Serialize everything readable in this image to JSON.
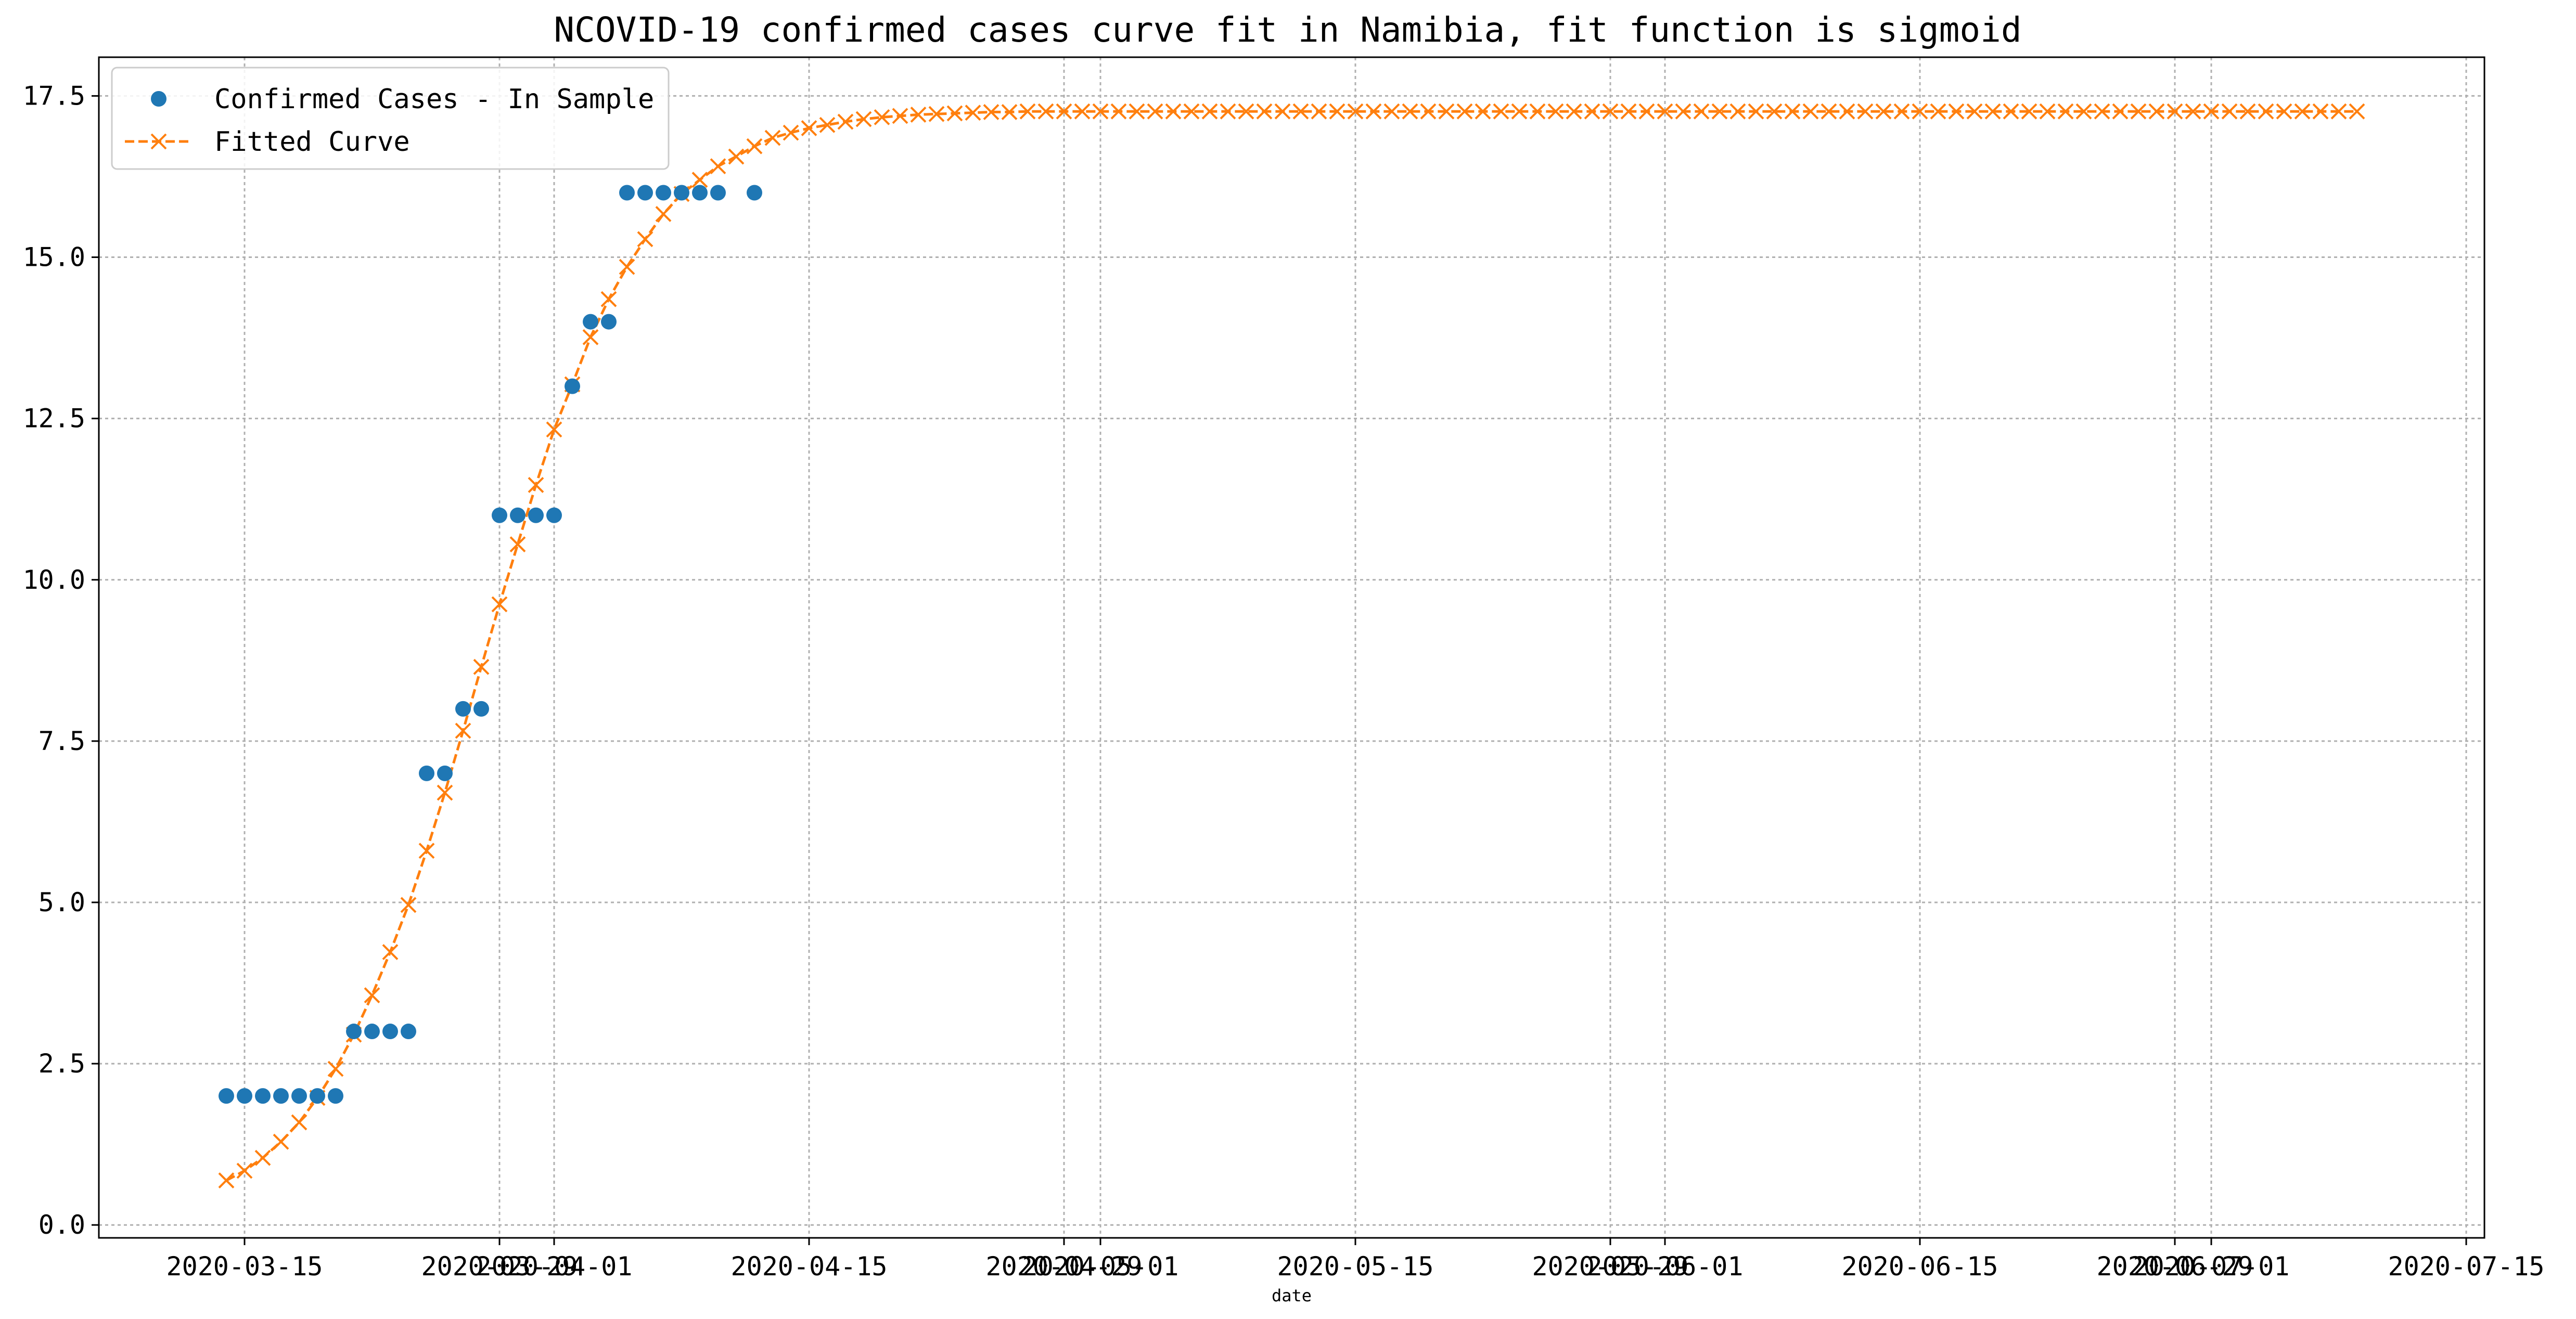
{
  "chart_data": {
    "type": "line",
    "title": "NCOVID-19 confirmed cases curve fit in Namibia, fit function is sigmoid",
    "xlabel": "date",
    "ylabel": "",
    "x_type": "date",
    "xlim": [
      "2020-03-07",
      "2020-07-16"
    ],
    "ylim": [
      -0.2,
      18.1
    ],
    "x_ticks": [
      "2020-03-15",
      "2020-04-01",
      "2020-04-15",
      "2020-05-01",
      "2020-05-15",
      "2020-06-01",
      "2020-06-15",
      "2020-07-01",
      "2020-07-15"
    ],
    "x_ticks_overlapping": [
      "2020-03-29",
      "2020-04-29",
      "2020-05-29",
      "2020-06-29"
    ],
    "y_ticks": [
      0.0,
      2.5,
      5.0,
      7.5,
      10.0,
      12.5,
      15.0,
      17.5
    ],
    "y_tick_labels": [
      "0.0",
      "2.5",
      "5.0",
      "7.5",
      "10.0",
      "12.5",
      "15.0",
      "17.5"
    ],
    "grid": true,
    "legend_position": "top-left",
    "series": [
      {
        "name": "Confirmed Cases - In Sample",
        "style": "markers",
        "marker": "circle",
        "color": "#1f77b4",
        "x": [
          "2020-03-14",
          "2020-03-15",
          "2020-03-16",
          "2020-03-17",
          "2020-03-18",
          "2020-03-19",
          "2020-03-20",
          "2020-03-21",
          "2020-03-22",
          "2020-03-23",
          "2020-03-24",
          "2020-03-25",
          "2020-03-26",
          "2020-03-27",
          "2020-03-28",
          "2020-03-29",
          "2020-03-30",
          "2020-03-31",
          "2020-04-01",
          "2020-04-02",
          "2020-04-03",
          "2020-04-04",
          "2020-04-05",
          "2020-04-06",
          "2020-04-07",
          "2020-04-08",
          "2020-04-09",
          "2020-04-10",
          "2020-04-12"
        ],
        "y": [
          2,
          2,
          2,
          2,
          2,
          2,
          2,
          3,
          3,
          3,
          3,
          7,
          7,
          8,
          8,
          11,
          11,
          11,
          11,
          13,
          14,
          14,
          16,
          16,
          16,
          16,
          16,
          16,
          16
        ]
      },
      {
        "name": "Fitted Curve",
        "style": "dashed-line-x-markers",
        "marker": "x",
        "color": "#ff7f0e",
        "x_start": "2020-03-14",
        "x_end": "2020-07-10",
        "step_days": 1,
        "y": [
          0.69,
          0.84,
          1.04,
          1.29,
          1.59,
          1.97,
          2.42,
          2.95,
          3.56,
          4.23,
          4.96,
          5.8,
          6.7,
          7.66,
          8.65,
          9.62,
          10.55,
          11.47,
          12.33,
          13.03,
          13.76,
          14.35,
          14.85,
          15.28,
          15.67,
          15.98,
          16.2,
          16.41,
          16.56,
          16.72,
          16.85,
          16.93,
          17.0,
          17.05,
          17.1,
          17.14,
          17.17,
          17.19,
          17.21,
          17.22,
          17.23,
          17.24,
          17.25,
          17.25,
          17.26,
          17.26,
          17.26,
          17.26,
          17.26,
          17.26,
          17.26,
          17.26,
          17.26,
          17.26,
          17.26,
          17.26,
          17.26,
          17.26,
          17.26,
          17.26,
          17.26,
          17.26,
          17.26,
          17.26,
          17.26,
          17.26,
          17.26,
          17.26,
          17.26,
          17.26,
          17.26,
          17.26,
          17.26,
          17.26,
          17.26,
          17.26,
          17.26,
          17.26,
          17.26,
          17.26,
          17.26,
          17.26,
          17.26,
          17.26,
          17.26,
          17.26,
          17.26,
          17.26,
          17.26,
          17.26,
          17.26,
          17.26,
          17.26,
          17.26,
          17.26,
          17.26,
          17.26,
          17.26,
          17.26,
          17.26,
          17.26,
          17.26,
          17.26,
          17.26,
          17.26,
          17.26,
          17.26,
          17.26,
          17.26,
          17.26,
          17.26,
          17.26,
          17.26,
          17.26,
          17.26,
          17.26,
          17.26,
          17.26
        ]
      }
    ]
  }
}
